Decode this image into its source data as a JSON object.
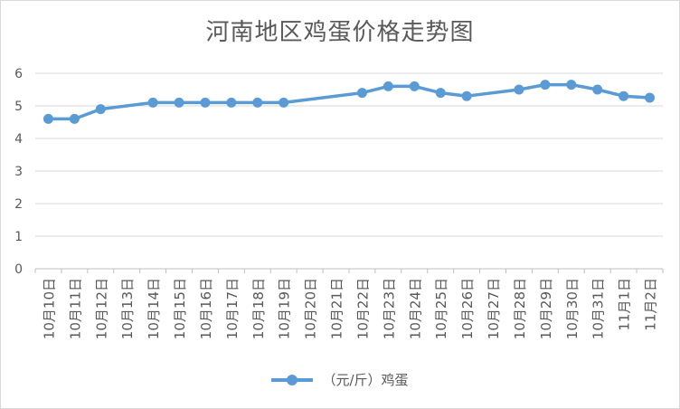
{
  "chart_data": {
    "type": "line",
    "title": "河南地区鸡蛋价格走势图",
    "categories": [
      "10月10日",
      "10月11日",
      "10月12日",
      "10月13日",
      "10月14日",
      "10月15日",
      "10月16日",
      "10月17日",
      "10月18日",
      "10月19日",
      "10月20日",
      "10月21日",
      "10月22日",
      "10月23日",
      "10月24日",
      "10月25日",
      "10月26日",
      "10月27日",
      "10月28日",
      "10月29日",
      "10月30日",
      "10月31日",
      "11月1日",
      "11月2日"
    ],
    "series": [
      {
        "name": "（元/斤）鸡蛋",
        "values": [
          4.6,
          4.6,
          4.9,
          null,
          5.1,
          5.1,
          5.1,
          5.1,
          5.1,
          5.1,
          null,
          null,
          5.4,
          5.6,
          5.6,
          5.4,
          5.3,
          null,
          5.5,
          5.65,
          5.65,
          5.5,
          5.3,
          5.25
        ],
        "color": "#5b9bd5"
      }
    ],
    "ylim": [
      0,
      6
    ],
    "yticks": [
      "0",
      "1",
      "2",
      "3",
      "4",
      "5",
      "6"
    ],
    "grid": true,
    "legend_position": "bottom"
  }
}
